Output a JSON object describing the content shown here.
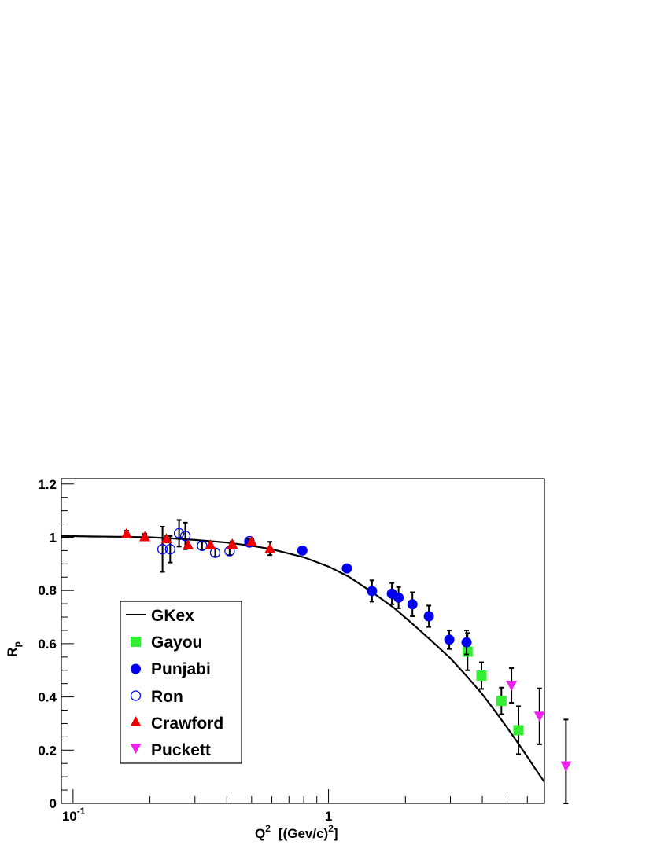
{
  "chart_data": {
    "type": "scatter",
    "xscale": "log",
    "xlim": [
      0.09,
      7.0
    ],
    "ylim": [
      0,
      1.22
    ],
    "xlabel": "Q",
    "xlabel_sup": "2",
    "xlabel_units": "[(Gev/c)",
    "xlabel_units_sup": "2",
    "xlabel_units_end": "]",
    "ylabel": "R",
    "ylabel_sub": "p",
    "x_tick_labels": [
      {
        "value": 0.1,
        "base": "10",
        "exp": "-1"
      },
      {
        "value": 1,
        "base": "1",
        "exp": ""
      }
    ],
    "y_tick_labels": [
      {
        "value": 0,
        "label": "0"
      },
      {
        "value": 0.2,
        "label": "0.2"
      },
      {
        "value": 0.4,
        "label": "0.4"
      },
      {
        "value": 0.6,
        "label": "0.6"
      },
      {
        "value": 0.8,
        "label": "0.8"
      },
      {
        "value": 1,
        "label": "1"
      },
      {
        "value": 1.2,
        "label": "1.2"
      }
    ],
    "legend_position": "left-middle",
    "curve": {
      "name": "GKex",
      "color": "#000000",
      "x": [
        0.09,
        0.12,
        0.15,
        0.2,
        0.25,
        0.3,
        0.4,
        0.5,
        0.6,
        0.8,
        1.0,
        1.2,
        1.5,
        1.8,
        2.1,
        2.5,
        3.0,
        3.5,
        4.0,
        4.5,
        5.0,
        5.5,
        6.0,
        6.5,
        7.0
      ],
      "y": [
        1.005,
        1.003,
        1.002,
        1.0,
        0.995,
        0.99,
        0.98,
        0.968,
        0.955,
        0.925,
        0.89,
        0.852,
        0.79,
        0.735,
        0.68,
        0.615,
        0.545,
        0.475,
        0.41,
        0.345,
        0.285,
        0.228,
        0.175,
        0.125,
        0.08
      ]
    },
    "series": [
      {
        "name": "Gayou",
        "marker": "square",
        "color": "#33ee33",
        "points": [
          {
            "x": 3.5,
            "y": 0.57,
            "err": 0.07
          },
          {
            "x": 3.97,
            "y": 0.48,
            "err": 0.05
          },
          {
            "x": 4.75,
            "y": 0.385,
            "err": 0.05
          },
          {
            "x": 5.54,
            "y": 0.275,
            "err": 0.09
          }
        ]
      },
      {
        "name": "Punjabi",
        "marker": "circle",
        "color": "#0000ee",
        "points": [
          {
            "x": 0.49,
            "y": 0.98,
            "err": 0.012
          },
          {
            "x": 0.79,
            "y": 0.95,
            "err": 0.012
          },
          {
            "x": 1.18,
            "y": 0.883,
            "err": 0.015
          },
          {
            "x": 1.48,
            "y": 0.798,
            "err": 0.04
          },
          {
            "x": 1.77,
            "y": 0.788,
            "err": 0.04
          },
          {
            "x": 1.88,
            "y": 0.773,
            "err": 0.04
          },
          {
            "x": 2.13,
            "y": 0.748,
            "err": 0.045
          },
          {
            "x": 2.47,
            "y": 0.703,
            "err": 0.04
          },
          {
            "x": 2.97,
            "y": 0.615,
            "err": 0.035
          },
          {
            "x": 3.47,
            "y": 0.605,
            "err": 0.045
          }
        ]
      },
      {
        "name": "Ron",
        "marker": "open-circle",
        "color": "#0000ee",
        "points": [
          {
            "x": 0.224,
            "y": 0.955,
            "err": 0.085
          },
          {
            "x": 0.24,
            "y": 0.955,
            "err": 0.05
          },
          {
            "x": 0.26,
            "y": 1.015,
            "err": 0.05
          },
          {
            "x": 0.275,
            "y": 1.005,
            "err": 0.05
          },
          {
            "x": 0.32,
            "y": 0.968,
            "err": 0.015
          },
          {
            "x": 0.36,
            "y": 0.942,
            "err": 0.015
          },
          {
            "x": 0.41,
            "y": 0.948,
            "err": 0.015
          },
          {
            "x": 0.49,
            "y": 0.985,
            "err": 0.01
          }
        ]
      },
      {
        "name": "Crawford",
        "marker": "triangle-up",
        "color": "#ee0000",
        "points": [
          {
            "x": 0.162,
            "y": 1.015,
            "err": 0.01
          },
          {
            "x": 0.191,
            "y": 1.003,
            "err": 0.01
          },
          {
            "x": 0.232,
            "y": 0.995,
            "err": 0.01
          },
          {
            "x": 0.282,
            "y": 0.972,
            "err": 0.01
          },
          {
            "x": 0.345,
            "y": 0.972,
            "err": 0.01
          },
          {
            "x": 0.42,
            "y": 0.975,
            "err": 0.01
          },
          {
            "x": 0.5,
            "y": 0.985,
            "err": 0.01
          },
          {
            "x": 0.59,
            "y": 0.958,
            "err": 0.025
          }
        ]
      },
      {
        "name": "Puckett",
        "marker": "triangle-down",
        "color": "#ee22ee",
        "points": [
          {
            "x": 5.2,
            "y": 0.443,
            "err": 0.065
          },
          {
            "x": 6.7,
            "y": 0.327,
            "err": 0.105
          },
          {
            "x": 8.5,
            "y": 0.14,
            "err": 0.175
          }
        ]
      }
    ]
  }
}
